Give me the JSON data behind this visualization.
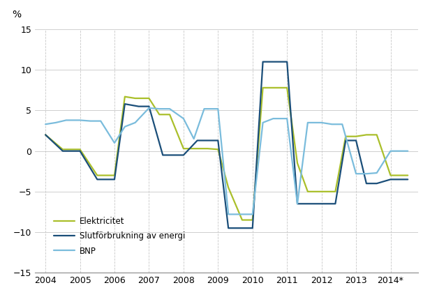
{
  "x_elek": [
    2004,
    2004.5,
    2005,
    2005.5,
    2006,
    2006.3,
    2006.6,
    2007,
    2007.3,
    2007.6,
    2008,
    2008.4,
    2008.7,
    2009,
    2009.3,
    2009.7,
    2010,
    2010.3,
    2010.7,
    2011,
    2011.3,
    2011.6,
    2012,
    2012.4,
    2012.7,
    2013,
    2013.3,
    2013.6,
    2014,
    2014.5
  ],
  "y_elek": [
    2.0,
    0.2,
    0.2,
    -3.0,
    -3.0,
    6.7,
    6.5,
    6.5,
    4.5,
    4.5,
    0.3,
    0.3,
    0.3,
    0.2,
    -4.5,
    -8.5,
    -8.5,
    7.8,
    7.8,
    7.8,
    -1.5,
    -5.0,
    -5.0,
    -5.0,
    1.8,
    1.8,
    2.0,
    2.0,
    -3.0,
    -3.0
  ],
  "x_slut": [
    2004,
    2004.5,
    2005,
    2005.5,
    2006,
    2006.3,
    2006.7,
    2007,
    2007.4,
    2007.7,
    2008,
    2008.4,
    2008.7,
    2009,
    2009.3,
    2009.7,
    2010,
    2010.3,
    2010.7,
    2011,
    2011.3,
    2011.6,
    2012,
    2012.4,
    2012.7,
    2013,
    2013.3,
    2013.6,
    2014,
    2014.5
  ],
  "y_slut": [
    2.0,
    0.0,
    0.0,
    -3.5,
    -3.5,
    5.8,
    5.5,
    5.5,
    -0.5,
    -0.5,
    -0.5,
    1.3,
    1.3,
    1.3,
    -9.5,
    -9.5,
    -9.5,
    11.0,
    11.0,
    11.0,
    -6.5,
    -6.5,
    -6.5,
    -6.5,
    1.3,
    1.3,
    -4.0,
    -4.0,
    -3.5,
    -3.5
  ],
  "x_bnp": [
    2004,
    2004.3,
    2004.6,
    2005,
    2005.3,
    2005.6,
    2006,
    2006.3,
    2006.6,
    2007,
    2007.3,
    2007.6,
    2008,
    2008.3,
    2008.6,
    2009,
    2009.3,
    2009.6,
    2010,
    2010.3,
    2010.6,
    2011,
    2011.3,
    2011.6,
    2012,
    2012.3,
    2012.6,
    2013,
    2013.3,
    2013.6,
    2014,
    2014.5
  ],
  "y_bnp": [
    3.3,
    3.5,
    3.8,
    3.8,
    3.7,
    3.7,
    1.0,
    3.0,
    3.5,
    5.3,
    5.2,
    5.2,
    4.0,
    1.5,
    5.2,
    5.2,
    -7.8,
    -7.8,
    -7.8,
    3.5,
    4.0,
    4.0,
    -6.5,
    3.5,
    3.5,
    3.3,
    3.3,
    -2.8,
    -2.8,
    -2.7,
    0.0,
    0.0
  ],
  "color_elektricitet": "#aabf2a",
  "color_slutforbrukning": "#1a4e79",
  "color_bnp": "#7abcdc",
  "ylabel": "%",
  "ylim": [
    -15,
    15
  ],
  "yticks": [
    -15,
    -10,
    -5,
    0,
    5,
    10,
    15
  ],
  "xtick_positions": [
    2004,
    2005,
    2006,
    2007,
    2008,
    2009,
    2010,
    2011,
    2012,
    2013,
    2014
  ],
  "xtick_labels": [
    "2004",
    "2005",
    "2006",
    "2007",
    "2008",
    "2009",
    "2010",
    "2011",
    "2012",
    "2013",
    "2014*"
  ],
  "legend_labels": [
    "Elektricitet",
    "Slutförbrukning av energi",
    "BNP"
  ],
  "linewidth": 1.6
}
